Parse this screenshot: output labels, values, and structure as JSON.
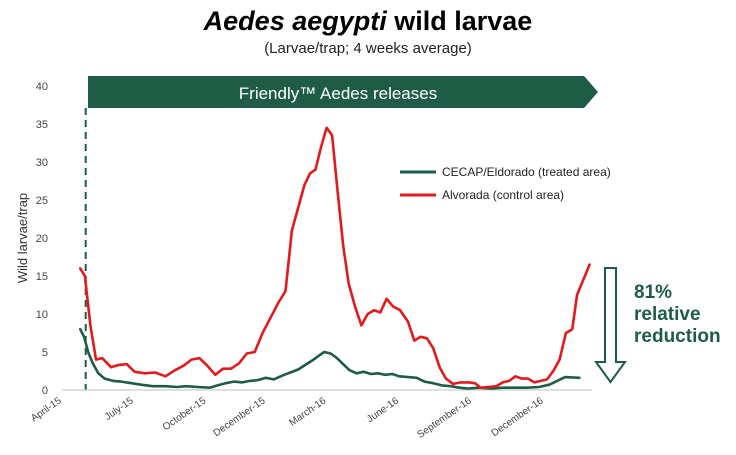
{
  "header": {
    "title_italic": "Aedes aegypti",
    "title_rest": " wild larvae",
    "subtitle": "(Larvae/trap; 4 weeks average)"
  },
  "banner": {
    "text": "Friendly™ Aedes releases",
    "color": "#1e5c45"
  },
  "annotation": {
    "lines": [
      "81%",
      "relative",
      "reduction"
    ],
    "color": "#1e5c45"
  },
  "chart_data": {
    "type": "line",
    "ylabel": "Wild larvae/trap",
    "ylim": [
      0,
      40
    ],
    "yticks": [
      0,
      5,
      10,
      15,
      20,
      25,
      30,
      35,
      40
    ],
    "xlim": [
      "2015-04-01",
      "2017-01-31"
    ],
    "xticks": [
      {
        "label": "April-15",
        "date": "2015-04-01"
      },
      {
        "label": "July-15",
        "date": "2015-07-01"
      },
      {
        "label": "October-15",
        "date": "2015-10-01"
      },
      {
        "label": "December-15",
        "date": "2015-12-15"
      },
      {
        "label": "March-16",
        "date": "2016-03-01"
      },
      {
        "label": "June-16",
        "date": "2016-06-01"
      },
      {
        "label": "September-16",
        "date": "2016-09-01"
      },
      {
        "label": "December-16",
        "date": "2016-12-01"
      }
    ],
    "release_start": "2015-05-01",
    "legend_position": "right",
    "grid": false,
    "series": [
      {
        "name": "CECAP/Eldorado (treated area)",
        "color": "#1e5c45",
        "points": [
          [
            "2015-04-24",
            8.0
          ],
          [
            "2015-04-29",
            7.0
          ],
          [
            "2015-05-04",
            5.0
          ],
          [
            "2015-05-10",
            3.5
          ],
          [
            "2015-05-17",
            2.2
          ],
          [
            "2015-05-25",
            1.5
          ],
          [
            "2015-06-05",
            1.2
          ],
          [
            "2015-06-15",
            1.1
          ],
          [
            "2015-06-28",
            0.9
          ],
          [
            "2015-07-10",
            0.7
          ],
          [
            "2015-07-25",
            0.5
          ],
          [
            "2015-08-10",
            0.5
          ],
          [
            "2015-08-25",
            0.4
          ],
          [
            "2015-09-05",
            0.5
          ],
          [
            "2015-09-20",
            0.4
          ],
          [
            "2015-10-05",
            0.3
          ],
          [
            "2015-10-15",
            0.6
          ],
          [
            "2015-10-25",
            0.9
          ],
          [
            "2015-11-05",
            1.1
          ],
          [
            "2015-11-15",
            1.0
          ],
          [
            "2015-11-25",
            1.2
          ],
          [
            "2015-12-05",
            1.3
          ],
          [
            "2015-12-15",
            1.6
          ],
          [
            "2015-12-25",
            1.4
          ],
          [
            "2016-01-05",
            1.9
          ],
          [
            "2016-01-15",
            2.3
          ],
          [
            "2016-01-25",
            2.7
          ],
          [
            "2016-02-03",
            3.3
          ],
          [
            "2016-02-12",
            3.9
          ],
          [
            "2016-02-20",
            4.5
          ],
          [
            "2016-02-27",
            5.0
          ],
          [
            "2016-03-06",
            4.8
          ],
          [
            "2016-03-14",
            4.2
          ],
          [
            "2016-03-22",
            3.4
          ],
          [
            "2016-03-30",
            2.6
          ],
          [
            "2016-04-08",
            2.2
          ],
          [
            "2016-04-17",
            2.4
          ],
          [
            "2016-04-26",
            2.1
          ],
          [
            "2016-05-05",
            2.2
          ],
          [
            "2016-05-14",
            2.0
          ],
          [
            "2016-05-23",
            2.1
          ],
          [
            "2016-06-01",
            1.8
          ],
          [
            "2016-06-12",
            1.7
          ],
          [
            "2016-06-23",
            1.6
          ],
          [
            "2016-07-03",
            1.1
          ],
          [
            "2016-07-14",
            0.9
          ],
          [
            "2016-07-25",
            0.6
          ],
          [
            "2016-08-05",
            0.5
          ],
          [
            "2016-08-16",
            0.3
          ],
          [
            "2016-08-27",
            0.2
          ],
          [
            "2016-09-10",
            0.3
          ],
          [
            "2016-09-25",
            0.2
          ],
          [
            "2016-10-10",
            0.3
          ],
          [
            "2016-10-25",
            0.3
          ],
          [
            "2016-11-10",
            0.3
          ],
          [
            "2016-11-25",
            0.4
          ],
          [
            "2016-12-08",
            0.7
          ],
          [
            "2016-12-18",
            1.2
          ],
          [
            "2016-12-28",
            1.7
          ],
          [
            "2017-01-15",
            1.6
          ]
        ]
      },
      {
        "name": "Alvorada (control area)",
        "color": "#e31a1c",
        "points": [
          [
            "2015-04-24",
            16.0
          ],
          [
            "2015-04-30",
            15.0
          ],
          [
            "2015-05-07",
            8.5
          ],
          [
            "2015-05-14",
            4.0
          ],
          [
            "2015-05-22",
            4.2
          ],
          [
            "2015-06-02",
            3.0
          ],
          [
            "2015-06-12",
            3.3
          ],
          [
            "2015-06-22",
            3.4
          ],
          [
            "2015-07-02",
            2.4
          ],
          [
            "2015-07-15",
            2.2
          ],
          [
            "2015-07-28",
            2.3
          ],
          [
            "2015-08-10",
            1.8
          ],
          [
            "2015-08-22",
            2.6
          ],
          [
            "2015-09-02",
            3.2
          ],
          [
            "2015-09-12",
            4.0
          ],
          [
            "2015-09-22",
            4.2
          ],
          [
            "2015-10-02",
            3.2
          ],
          [
            "2015-10-12",
            2.0
          ],
          [
            "2015-10-22",
            2.8
          ],
          [
            "2015-11-01",
            2.8
          ],
          [
            "2015-11-11",
            3.5
          ],
          [
            "2015-11-21",
            4.8
          ],
          [
            "2015-12-01",
            5.0
          ],
          [
            "2015-12-11",
            7.5
          ],
          [
            "2015-12-21",
            9.5
          ],
          [
            "2015-12-31",
            11.5
          ],
          [
            "2016-01-09",
            13.0
          ],
          [
            "2016-01-17",
            21.0
          ],
          [
            "2016-01-25",
            24.0
          ],
          [
            "2016-02-02",
            27.0
          ],
          [
            "2016-02-09",
            28.5
          ],
          [
            "2016-02-16",
            29.0
          ],
          [
            "2016-02-23",
            32.0
          ],
          [
            "2016-03-01",
            34.5
          ],
          [
            "2016-03-08",
            33.5
          ],
          [
            "2016-03-15",
            26.0
          ],
          [
            "2016-03-22",
            19.0
          ],
          [
            "2016-03-29",
            14.0
          ],
          [
            "2016-04-06",
            11.0
          ],
          [
            "2016-04-14",
            8.5
          ],
          [
            "2016-04-22",
            10.0
          ],
          [
            "2016-04-30",
            10.5
          ],
          [
            "2016-05-08",
            10.2
          ],
          [
            "2016-05-16",
            12.0
          ],
          [
            "2016-05-24",
            11.0
          ],
          [
            "2016-06-02",
            10.5
          ],
          [
            "2016-06-12",
            9.0
          ],
          [
            "2016-06-20",
            6.5
          ],
          [
            "2016-06-28",
            7.0
          ],
          [
            "2016-07-06",
            6.8
          ],
          [
            "2016-07-14",
            5.5
          ],
          [
            "2016-07-22",
            3.0
          ],
          [
            "2016-07-30",
            1.5
          ],
          [
            "2016-08-08",
            0.8
          ],
          [
            "2016-08-18",
            1.0
          ],
          [
            "2016-08-28",
            1.0
          ],
          [
            "2016-09-05",
            0.9
          ],
          [
            "2016-09-12",
            0.3
          ],
          [
            "2016-09-22",
            0.4
          ],
          [
            "2016-10-02",
            0.5
          ],
          [
            "2016-10-10",
            1.0
          ],
          [
            "2016-10-18",
            1.2
          ],
          [
            "2016-10-26",
            1.8
          ],
          [
            "2016-11-03",
            1.5
          ],
          [
            "2016-11-11",
            1.5
          ],
          [
            "2016-11-19",
            1.0
          ],
          [
            "2016-11-27",
            1.2
          ],
          [
            "2016-12-05",
            1.4
          ],
          [
            "2016-12-13",
            2.5
          ],
          [
            "2016-12-21",
            4.0
          ],
          [
            "2016-12-29",
            7.5
          ],
          [
            "2017-01-06",
            8.0
          ],
          [
            "2017-01-12",
            12.5
          ],
          [
            "2017-01-20",
            14.5
          ],
          [
            "2017-01-28",
            16.5
          ]
        ]
      }
    ]
  }
}
